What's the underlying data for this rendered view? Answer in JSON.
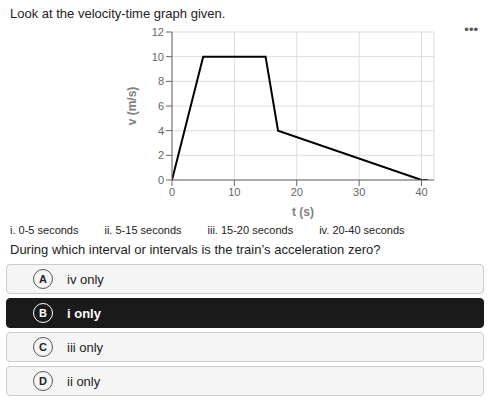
{
  "chart_data": {
    "type": "line",
    "title": "Look at the velocity-time graph given.",
    "x_label": "t (s)",
    "y_label": "v (m/s)",
    "x": [
      0,
      5,
      15,
      17,
      40,
      41
    ],
    "values": [
      0,
      10,
      10,
      4,
      0,
      0
    ],
    "color": "#000000",
    "xlim": [
      0,
      42
    ],
    "ylim": [
      0,
      12
    ],
    "xticks": [
      0,
      10,
      20,
      30,
      40
    ],
    "yticks": [
      0,
      2,
      4,
      6,
      8,
      10,
      12
    ],
    "grid": true,
    "annotations": [
      "•••",
      "i. 0-5 seconds",
      "ii. 5-15 seconds",
      "iii. 15-20 seconds",
      "iv. 20-40 seconds",
      "During which interval or intervals is the train’s acceleration zero?"
    ],
    "options": [
      {
        "letter": "A",
        "text": "iv only",
        "selected": false
      },
      {
        "letter": "B",
        "text": "i only",
        "selected": true
      },
      {
        "letter": "C",
        "text": "iii only",
        "selected": false
      },
      {
        "letter": "D",
        "text": "ii only",
        "selected": false
      }
    ]
  }
}
